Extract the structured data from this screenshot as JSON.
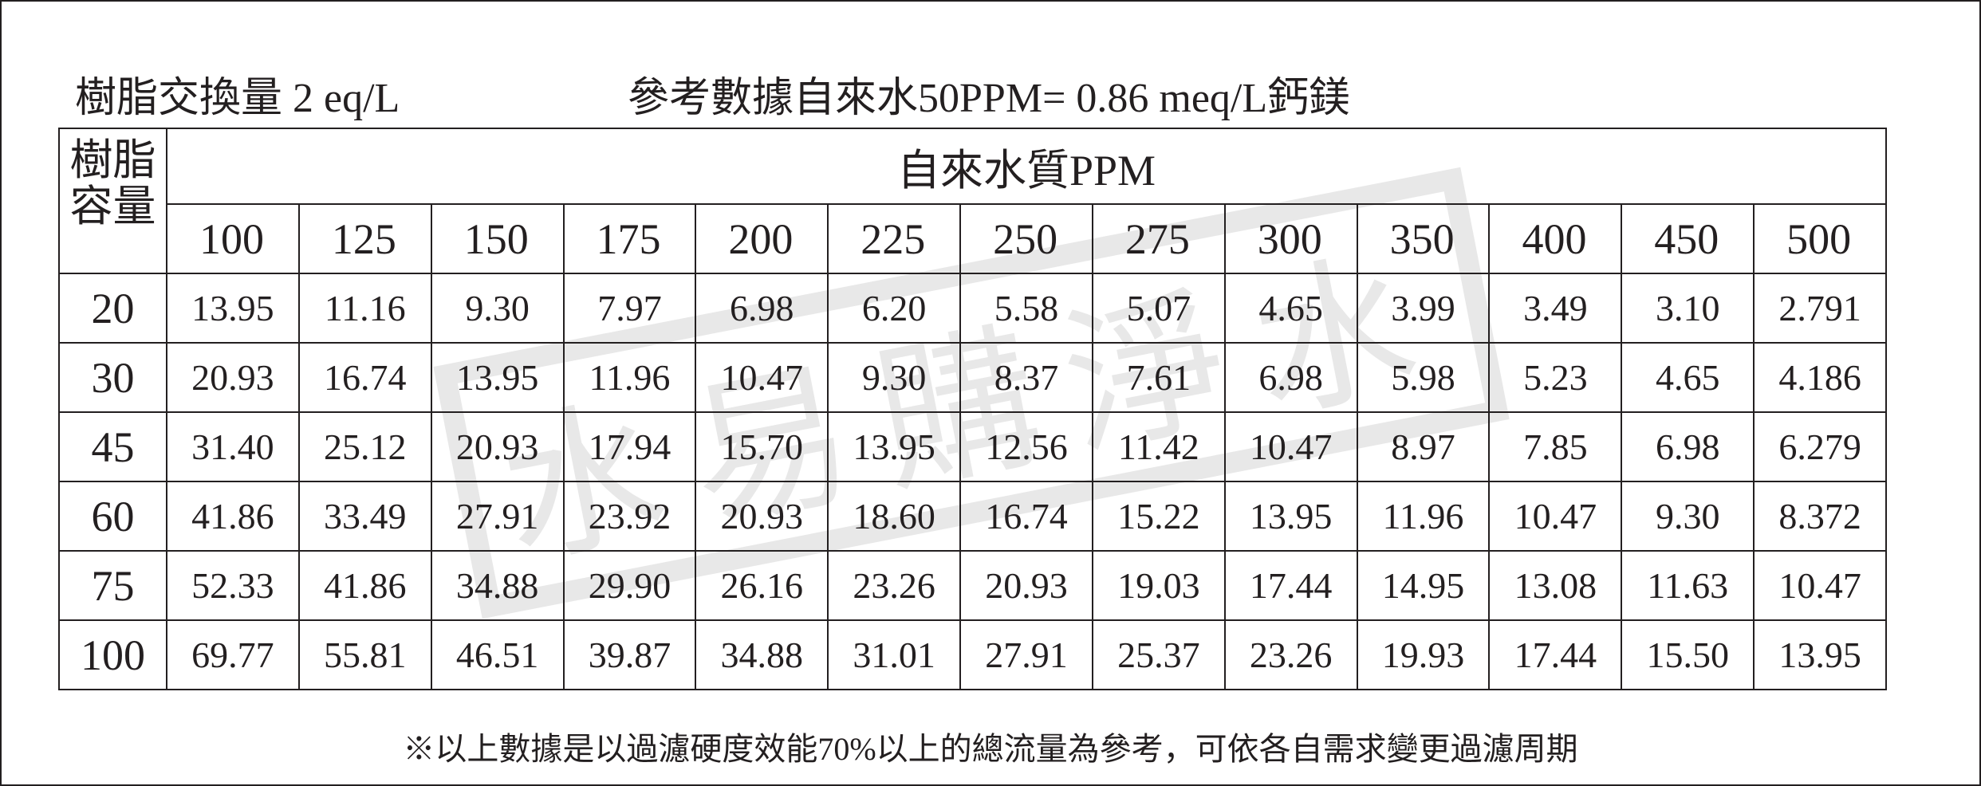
{
  "header": {
    "left": "樹脂交換量 2 eq/L",
    "right": "參考數據自來水50PPM= 0.86 meq/L鈣鎂"
  },
  "table": {
    "corner": "樹脂容量",
    "group_header": "自來水質PPM",
    "columns": [
      "100",
      "125",
      "150",
      "175",
      "200",
      "225",
      "250",
      "275",
      "300",
      "350",
      "400",
      "450",
      "500"
    ],
    "rows": [
      [
        "20",
        "13.95",
        "11.16",
        "9.30",
        "7.97",
        "6.98",
        "6.20",
        "5.58",
        "5.07",
        "4.65",
        "3.99",
        "3.49",
        "3.10",
        "2.791"
      ],
      [
        "30",
        "20.93",
        "16.74",
        "13.95",
        "11.96",
        "10.47",
        "9.30",
        "8.37",
        "7.61",
        "6.98",
        "5.98",
        "5.23",
        "4.65",
        "4.186"
      ],
      [
        "45",
        "31.40",
        "25.12",
        "20.93",
        "17.94",
        "15.70",
        "13.95",
        "12.56",
        "11.42",
        "10.47",
        "8.97",
        "7.85",
        "6.98",
        "6.279"
      ],
      [
        "60",
        "41.86",
        "33.49",
        "27.91",
        "23.92",
        "20.93",
        "18.60",
        "16.74",
        "15.22",
        "13.95",
        "11.96",
        "10.47",
        "9.30",
        "8.372"
      ],
      [
        "75",
        "52.33",
        "41.86",
        "34.88",
        "29.90",
        "26.16",
        "23.26",
        "20.93",
        "19.03",
        "17.44",
        "14.95",
        "13.08",
        "11.63",
        "10.47"
      ],
      [
        "100",
        "69.77",
        "55.81",
        "46.51",
        "39.87",
        "34.88",
        "31.01",
        "27.91",
        "25.37",
        "23.26",
        "19.93",
        "17.44",
        "15.50",
        "13.95"
      ]
    ]
  },
  "watermark": "水易購淨水",
  "footnote": "※以上數據是以過濾硬度效能70%以上的總流量為參考，可依各自需求變更過濾周期"
}
